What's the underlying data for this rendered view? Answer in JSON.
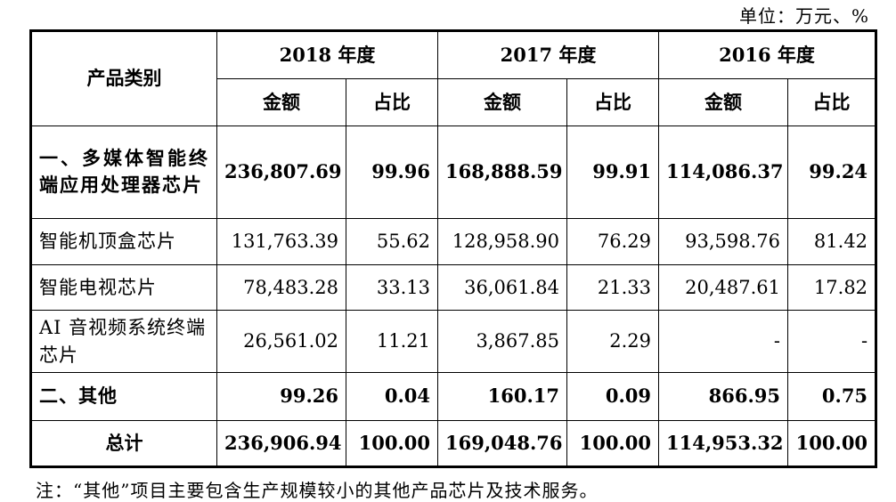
{
  "unit_label": "单位：万元、%",
  "header": {
    "category": "产品类别",
    "years": [
      "2018 年度",
      "2017 年度",
      "2016 年度"
    ],
    "amount": "金额",
    "share": "占比"
  },
  "rows": [
    {
      "category": "一、多媒体智能终端应用处理器芯片",
      "values": [
        "236,807.69",
        "99.96",
        "168,888.59",
        "99.91",
        "114,086.37",
        "99.24"
      ]
    },
    {
      "category": "智能机顶盒芯片",
      "values": [
        "131,763.39",
        "55.62",
        "128,958.90",
        "76.29",
        "93,598.76",
        "81.42"
      ]
    },
    {
      "category": "智能电视芯片",
      "values": [
        "78,483.28",
        "33.13",
        "36,061.84",
        "21.33",
        "20,487.61",
        "17.82"
      ]
    },
    {
      "category": "AI 音视频系统终端芯片",
      "values": [
        "26,561.02",
        "11.21",
        "3,867.85",
        "2.29",
        "-",
        "-"
      ]
    },
    {
      "category": "二、其他",
      "values": [
        "99.26",
        "0.04",
        "160.17",
        "0.09",
        "866.95",
        "0.75"
      ]
    },
    {
      "category": "总计",
      "values": [
        "236,906.94",
        "100.00",
        "169,048.76",
        "100.00",
        "114,953.32",
        "100.00"
      ]
    }
  ],
  "note": "注：“其他”项目主要包含生产规模较小的其他产品芯片及技术服务。"
}
